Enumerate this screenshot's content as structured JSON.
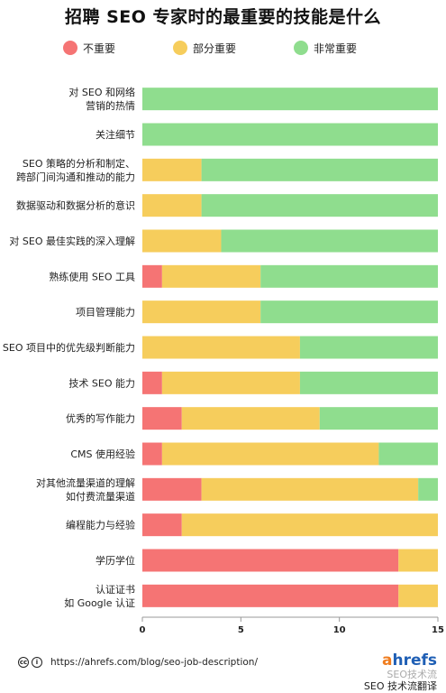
{
  "title": "招聘 SEO 专家时的最重要的技能是什么",
  "legend": [
    {
      "label": "不重要",
      "color": "#f57474"
    },
    {
      "label": "部分重要",
      "color": "#f6cd5c"
    },
    {
      "label": "非常重要",
      "color": "#8fdd8e"
    }
  ],
  "chart_data": {
    "type": "bar",
    "orientation": "horizontal",
    "stacked": true,
    "categories": [
      [
        "对 SEO 和网络",
        "营销的热情"
      ],
      [
        "关注细节"
      ],
      [
        "SEO 策略的分析和制定、",
        "跨部门间沟通和推动的能力"
      ],
      [
        "数据驱动和数据分析的意识"
      ],
      [
        "对 SEO 最佳实践的深入理解"
      ],
      [
        "熟练使用 SEO 工具"
      ],
      [
        "项目管理能力"
      ],
      [
        "SEO 项目中的优先级判断能力"
      ],
      [
        "技术 SEO 能力"
      ],
      [
        "优秀的写作能力"
      ],
      [
        "CMS 使用经验"
      ],
      [
        "对其他流量渠道的理解",
        "如付费流量渠道"
      ],
      [
        "编程能力与经验"
      ],
      [
        "学历学位"
      ],
      [
        "认证证书",
        "如 Google 认证"
      ]
    ],
    "series": [
      {
        "name": "不重要",
        "color": "#f57474",
        "values": [
          0,
          0,
          0,
          0,
          0,
          1,
          0,
          0,
          1,
          2,
          1,
          3,
          2,
          13,
          13
        ]
      },
      {
        "name": "部分重要",
        "color": "#f6cd5c",
        "values": [
          0,
          0,
          3,
          3,
          4,
          5,
          6,
          8,
          7,
          7,
          11,
          11,
          13,
          2,
          2
        ]
      },
      {
        "name": "非常重要",
        "color": "#8fdd8e",
        "values": [
          15,
          15,
          12,
          12,
          11,
          9,
          9,
          7,
          7,
          6,
          3,
          1,
          0,
          0,
          0
        ]
      }
    ],
    "xlim": [
      0,
      15
    ],
    "xticks": [
      "0",
      "5",
      "10",
      "15"
    ],
    "grid": false,
    "legend_position": "top"
  },
  "footer": {
    "cc_label": "cc",
    "info_label": "i",
    "url": "https://ahrefs.com/blog/seo-job-description/"
  },
  "brand": {
    "logo_a": "a",
    "logo_rest": "hrefs",
    "watermark": "SEO技术流",
    "translator": "SEO 技术流翻译"
  }
}
